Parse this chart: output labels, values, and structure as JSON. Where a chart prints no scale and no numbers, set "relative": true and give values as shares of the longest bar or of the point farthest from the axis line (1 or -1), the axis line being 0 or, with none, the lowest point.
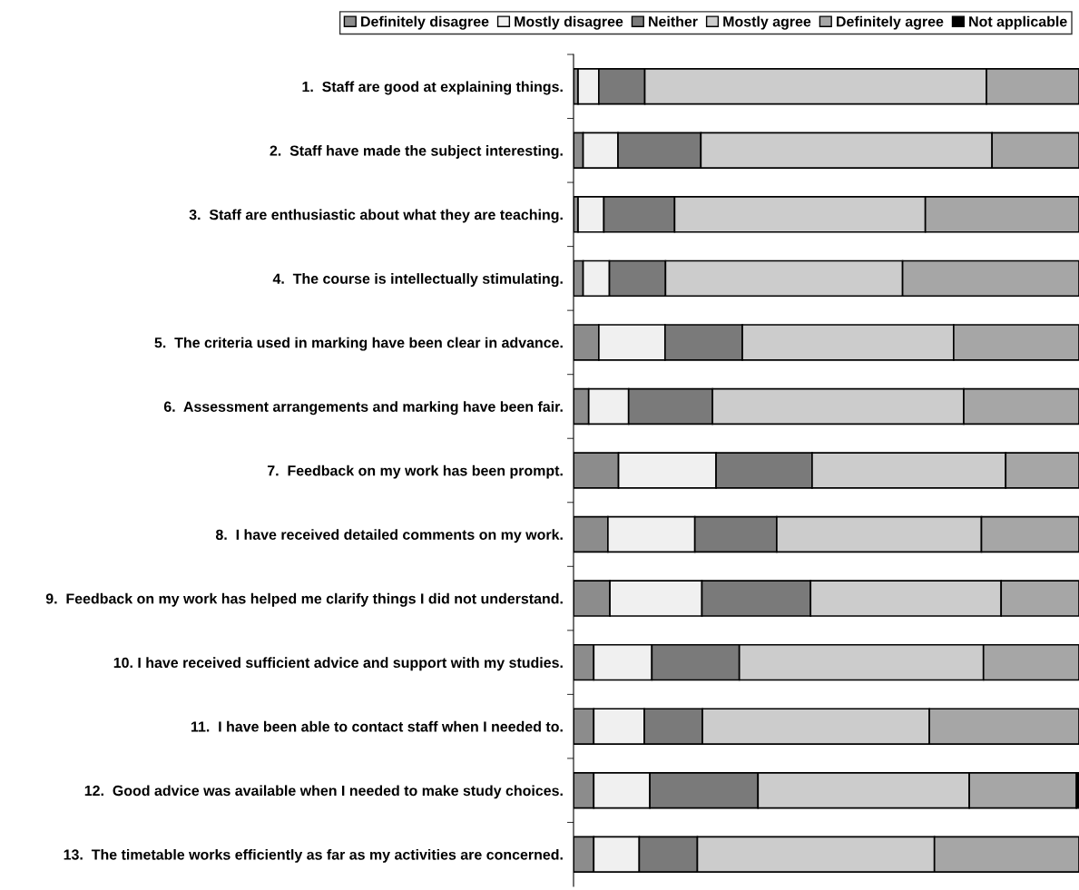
{
  "chart_data": {
    "type": "bar",
    "orientation": "horizontal",
    "stacked": true,
    "relative": true,
    "legend": "top",
    "grid": false,
    "categories": [
      "1.  Staff are good at explaining things.",
      "2.  Staff have made the subject interesting.",
      "3.  Staff are enthusiastic about what they are teaching.",
      "4.  The course is intellectually stimulating.",
      "5.  The criteria used in marking have been clear in advance.",
      "6.  Assessment arrangements and marking have been fair.",
      "7.  Feedback on my work has been prompt.",
      "8.  I have received detailed comments on my work.",
      "9.  Feedback on my work has helped me clarify things I did not understand.",
      "10. I have received sufficient advice and support with my studies.",
      "11.  I have been able to contact staff when I needed to.",
      "12.  Good advice was available when I needed to make study choices.",
      "13.  The timetable works efficiently as far as my activities are concerned."
    ],
    "series": [
      {
        "name": "Definitely disagree",
        "color": "#8c8c8c",
        "values": [
          0.009,
          0.019,
          0.009,
          0.019,
          0.05,
          0.03,
          0.089,
          0.068,
          0.072,
          0.04,
          0.04,
          0.04,
          0.04
        ]
      },
      {
        "name": "Mostly disagree",
        "color": "#f0f0f0",
        "values": [
          0.041,
          0.069,
          0.051,
          0.052,
          0.131,
          0.079,
          0.193,
          0.172,
          0.182,
          0.115,
          0.1,
          0.111,
          0.09
        ]
      },
      {
        "name": "Neither",
        "color": "#7a7a7a",
        "values": [
          0.091,
          0.164,
          0.14,
          0.111,
          0.153,
          0.166,
          0.19,
          0.162,
          0.215,
          0.173,
          0.115,
          0.214,
          0.115
        ]
      },
      {
        "name": "Mostly agree",
        "color": "#cccccc",
        "values": [
          0.676,
          0.576,
          0.496,
          0.469,
          0.418,
          0.497,
          0.383,
          0.405,
          0.377,
          0.483,
          0.449,
          0.418,
          0.469
        ]
      },
      {
        "name": "Definitely agree",
        "color": "#a6a6a6",
        "values": [
          0.183,
          0.172,
          0.304,
          0.349,
          0.248,
          0.228,
          0.145,
          0.193,
          0.154,
          0.189,
          0.296,
          0.212,
          0.286
        ]
      },
      {
        "name": "Not applicable",
        "color": "#000000",
        "values": [
          0,
          0,
          0,
          0,
          0,
          0,
          0,
          0,
          0,
          0,
          0,
          0.005,
          0
        ]
      }
    ]
  }
}
